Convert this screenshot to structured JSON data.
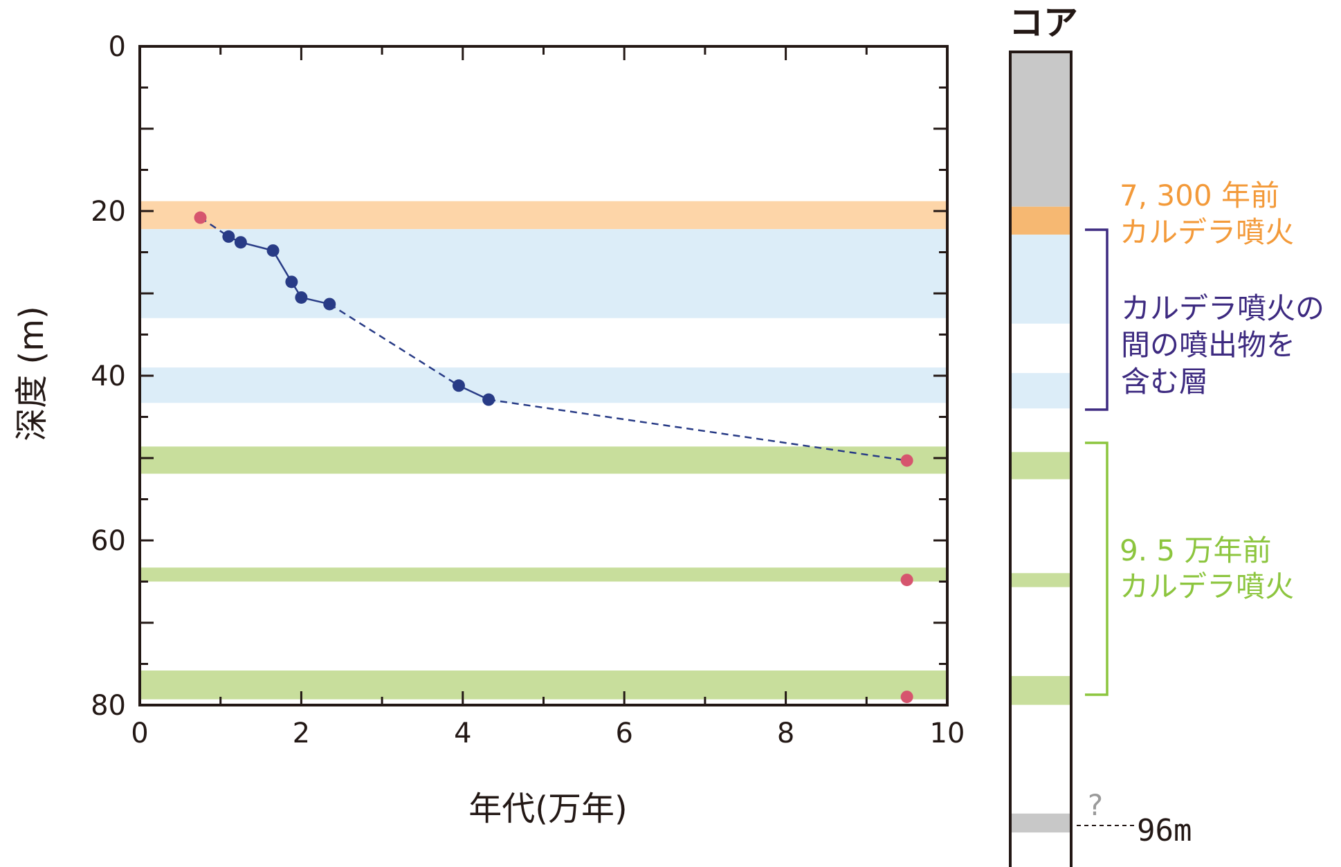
{
  "chart_data": {
    "type": "scatter",
    "xlabel": "年代(万年)",
    "ylabel": "深度 (m)",
    "xlim": [
      0,
      10
    ],
    "ylim": [
      80,
      0
    ],
    "y_inverted": true,
    "x_ticks": [
      0,
      2,
      4,
      6,
      8,
      10
    ],
    "y_ticks": [
      0,
      20,
      40,
      60,
      80
    ],
    "bands": [
      {
        "from": 18.8,
        "to": 22.2,
        "color": "#fdd5a8"
      },
      {
        "from": 22.2,
        "to": 33.0,
        "color": "#dcedf8"
      },
      {
        "from": 39.0,
        "to": 43.3,
        "color": "#dcedf8"
      },
      {
        "from": 48.6,
        "to": 51.9,
        "color": "#c8de9c"
      },
      {
        "from": 63.3,
        "to": 65.0,
        "color": "#c8de9c"
      },
      {
        "from": 75.8,
        "to": 79.3,
        "color": "#c8de9c"
      }
    ],
    "series": [
      {
        "color": "#283b86",
        "points": [
          [
            1.1,
            23.1
          ],
          [
            1.25,
            23.8
          ],
          [
            1.65,
            24.8
          ],
          [
            1.88,
            28.6
          ],
          [
            2.0,
            30.5
          ],
          [
            2.35,
            31.3
          ],
          [
            3.95,
            41.2
          ],
          [
            4.32,
            42.9
          ]
        ]
      },
      {
        "color": "#d6556e",
        "points": [
          [
            0.75,
            20.8
          ],
          [
            9.5,
            50.3
          ],
          [
            9.5,
            64.8
          ],
          [
            9.5,
            79.0
          ]
        ]
      }
    ],
    "dashed_links": [
      [
        [
          0.75,
          20.8
        ],
        [
          1.1,
          23.1
        ]
      ],
      [
        [
          2.35,
          31.3
        ],
        [
          3.95,
          41.2
        ]
      ],
      [
        [
          4.32,
          42.9
        ],
        [
          9.5,
          50.3
        ]
      ]
    ]
  },
  "core": {
    "title": "コア",
    "layers": [
      {
        "from": 0,
        "to": 18.8,
        "color": "#c8c8c8"
      },
      {
        "from": 18.8,
        "to": 22.2,
        "color": "#f6b872"
      },
      {
        "from": 22.2,
        "to": 33.0,
        "color": "#dcedf8"
      },
      {
        "from": 39.0,
        "to": 43.3,
        "color": "#dcedf8"
      },
      {
        "from": 48.6,
        "to": 51.9,
        "color": "#c8de9c"
      },
      {
        "from": 63.3,
        "to": 65.0,
        "color": "#c8de9c"
      },
      {
        "from": 75.8,
        "to": 79.3,
        "color": "#c8de9c"
      },
      {
        "from": 92.5,
        "to": 94.8,
        "color": "#c8c8c8"
      }
    ],
    "question_mark": "?",
    "bottom_label": "96m"
  },
  "annotations": {
    "recent": {
      "line1": "7, 300 年前",
      "line2": "カルデラ噴火",
      "color": "#f39a3a"
    },
    "between": {
      "line1": "カルデラ噴火の",
      "line2": "間の噴出物を",
      "line3": "含む層",
      "color": "#3d2a80"
    },
    "old": {
      "line1": "9. 5 万年前",
      "line2": "カルデラ噴火",
      "color": "#8cc53e"
    }
  }
}
